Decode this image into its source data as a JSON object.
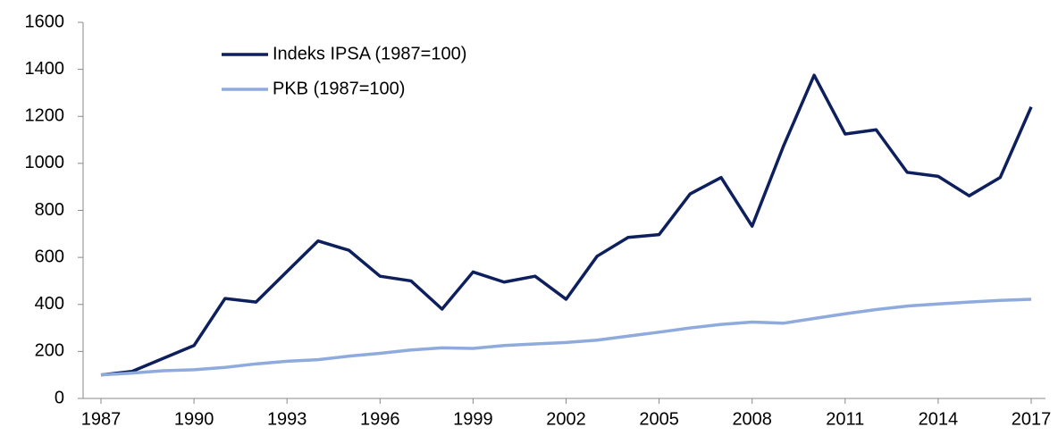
{
  "chart_data": {
    "type": "line",
    "x": [
      1987,
      1988,
      1989,
      1990,
      1991,
      1992,
      1993,
      1994,
      1995,
      1996,
      1997,
      1998,
      1999,
      2000,
      2001,
      2002,
      2003,
      2004,
      2005,
      2006,
      2007,
      2008,
      2009,
      2010,
      2011,
      2012,
      2013,
      2014,
      2015,
      2016,
      2017
    ],
    "series": [
      {
        "name": "Indeks IPSA (1987=100)",
        "color": "#0d1f5c",
        "values": [
          100,
          115,
          170,
          225,
          425,
          410,
          540,
          670,
          630,
          520,
          500,
          380,
          538,
          495,
          520,
          422,
          605,
          685,
          697,
          870,
          940,
          733,
          1070,
          1375,
          1125,
          1143,
          962,
          945,
          862,
          940,
          1240
        ]
      },
      {
        "name": "PKB (1987=100)",
        "color": "#8faadc",
        "values": [
          100,
          108,
          118,
          122,
          132,
          147,
          158,
          165,
          180,
          192,
          206,
          215,
          213,
          225,
          232,
          238,
          248,
          265,
          282,
          300,
          315,
          325,
          320,
          340,
          360,
          378,
          393,
          402,
          410,
          417,
          422
        ]
      }
    ],
    "xlim": [
      1987,
      2017
    ],
    "xticks": [
      1987,
      1990,
      1993,
      1996,
      1999,
      2002,
      2005,
      2008,
      2011,
      2014,
      2017
    ],
    "ylim": [
      0,
      1600
    ],
    "yticks": [
      0,
      200,
      400,
      600,
      800,
      1000,
      1200,
      1400,
      1600
    ],
    "legend": "top-left"
  }
}
